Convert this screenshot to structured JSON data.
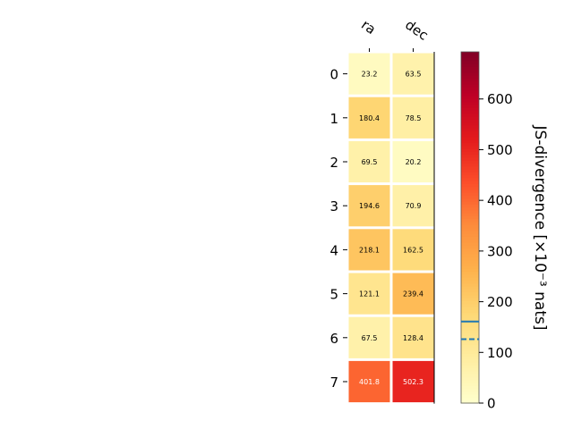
{
  "chart_data": {
    "type": "heatmap",
    "columns": [
      "ra",
      "dec"
    ],
    "rows": [
      "0",
      "1",
      "2",
      "3",
      "4",
      "5",
      "6",
      "7"
    ],
    "values": [
      [
        23.2,
        63.5
      ],
      [
        180.4,
        78.5
      ],
      [
        69.5,
        20.2
      ],
      [
        194.6,
        70.9
      ],
      [
        218.1,
        162.5
      ],
      [
        121.1,
        239.4
      ],
      [
        67.5,
        128.4
      ],
      [
        401.8,
        502.3
      ]
    ],
    "cell_labels": [
      [
        "23.2",
        "63.5"
      ],
      [
        "180.4",
        "78.5"
      ],
      [
        "69.5",
        "20.2"
      ],
      [
        "194.6",
        "70.9"
      ],
      [
        "218.1",
        "162.5"
      ],
      [
        "121.1",
        "239.4"
      ],
      [
        "67.5",
        "128.4"
      ],
      [
        "401.8",
        "502.3"
      ]
    ],
    "colorbar": {
      "label": "JS-divergence [×10⁻³ nats]",
      "min": 0,
      "max": 693,
      "ticks": [
        0,
        100,
        200,
        300,
        400,
        500,
        600
      ],
      "tick_labels": [
        "0",
        "100",
        "200",
        "300",
        "400",
        "500",
        "600"
      ],
      "colormap": "YlOrRd",
      "reference_lines": [
        {
          "value": 161,
          "style": "solid",
          "color": "#1f77b4"
        },
        {
          "value": 126,
          "style": "dashed",
          "color": "#1f77b4"
        }
      ]
    }
  }
}
